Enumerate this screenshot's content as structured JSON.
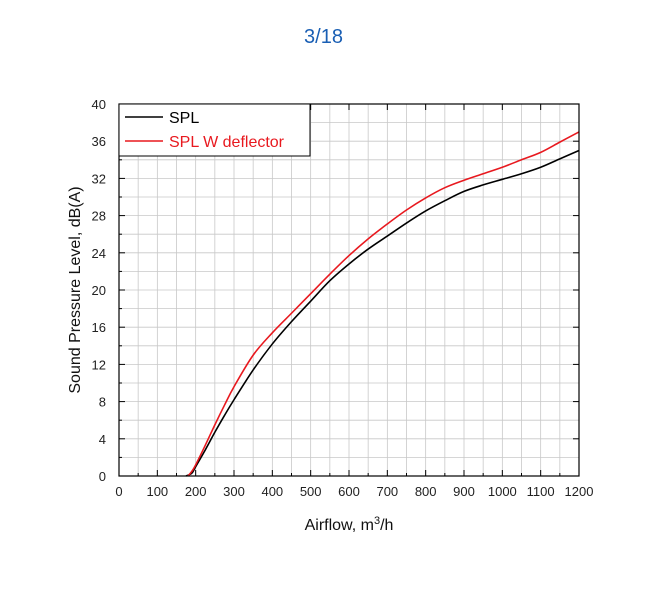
{
  "page_indicator": "3/18",
  "colors": {
    "page_indicator": "#1a5fb4",
    "grid": "#c8c8c8",
    "axis": "#000000"
  },
  "chart_data": {
    "type": "line",
    "title": "",
    "xlabel": "Airflow, m³/h",
    "xlabel_parts": {
      "base": "Airflow, m",
      "sup": "3",
      "tail": "/h"
    },
    "ylabel": "Sound Pressure Level, dB(A)",
    "xlim": [
      0,
      1200
    ],
    "ylim": [
      0,
      40
    ],
    "x_ticks": [
      0,
      100,
      200,
      300,
      400,
      500,
      600,
      700,
      800,
      900,
      1000,
      1100,
      1200
    ],
    "y_ticks": [
      0,
      4,
      8,
      12,
      16,
      20,
      24,
      28,
      32,
      36,
      40
    ],
    "grid": true,
    "legend": "top-left",
    "series": [
      {
        "name": "SPL",
        "color": "#000000",
        "points": [
          [
            175,
            0
          ],
          [
            190,
            0.3
          ],
          [
            200,
            1.0
          ],
          [
            225,
            2.8
          ],
          [
            250,
            4.7
          ],
          [
            275,
            6.5
          ],
          [
            300,
            8.2
          ],
          [
            350,
            11.4
          ],
          [
            400,
            14.2
          ],
          [
            450,
            16.6
          ],
          [
            500,
            18.8
          ],
          [
            550,
            21.0
          ],
          [
            600,
            22.8
          ],
          [
            650,
            24.4
          ],
          [
            700,
            25.8
          ],
          [
            750,
            27.2
          ],
          [
            800,
            28.5
          ],
          [
            850,
            29.6
          ],
          [
            900,
            30.6
          ],
          [
            950,
            31.3
          ],
          [
            1000,
            31.9
          ],
          [
            1050,
            32.5
          ],
          [
            1100,
            33.2
          ],
          [
            1150,
            34.1
          ],
          [
            1200,
            35.0
          ]
        ]
      },
      {
        "name": "SPL W deflector",
        "color": "#e8191f",
        "points": [
          [
            180,
            0
          ],
          [
            190,
            0.5
          ],
          [
            200,
            1.2
          ],
          [
            225,
            3.3
          ],
          [
            250,
            5.5
          ],
          [
            275,
            7.6
          ],
          [
            300,
            9.6
          ],
          [
            350,
            13.0
          ],
          [
            400,
            15.4
          ],
          [
            450,
            17.5
          ],
          [
            500,
            19.6
          ],
          [
            550,
            21.7
          ],
          [
            600,
            23.7
          ],
          [
            650,
            25.5
          ],
          [
            700,
            27.1
          ],
          [
            750,
            28.6
          ],
          [
            800,
            29.9
          ],
          [
            850,
            31.0
          ],
          [
            900,
            31.8
          ],
          [
            950,
            32.5
          ],
          [
            1000,
            33.2
          ],
          [
            1050,
            34.0
          ],
          [
            1100,
            34.8
          ],
          [
            1150,
            35.9
          ],
          [
            1200,
            37.0
          ]
        ]
      }
    ]
  }
}
